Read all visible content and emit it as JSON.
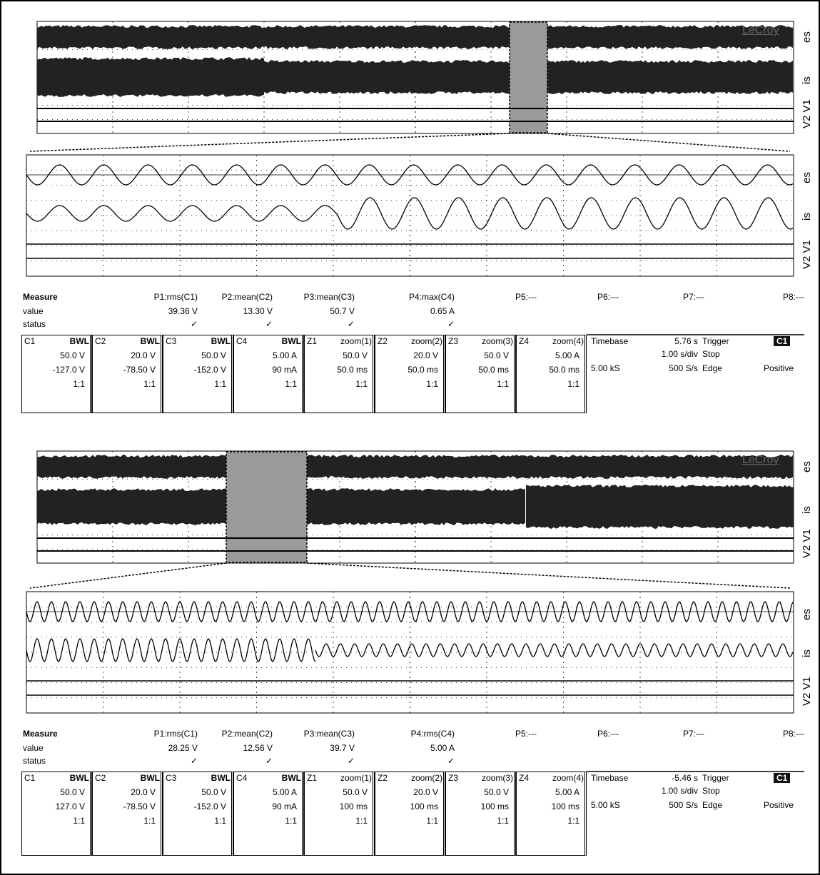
{
  "panels": [
    {
      "logo": "LeCroy",
      "trace_labels": [
        "es",
        "is",
        "V2 V1"
      ],
      "zoom_trace_labels": [
        "es",
        "is",
        "V2 V1"
      ],
      "measure": {
        "headers": [
          "Measure",
          "P1:rms(C1)",
          "P2:mean(C2)",
          "P3:mean(C3)",
          "P4:max(C4)",
          "P5:---",
          "P6:---",
          "P7:---",
          "P8:---"
        ],
        "values": [
          "value",
          "39.36 V",
          "13.30 V",
          "50.7 V",
          "0.65 A"
        ],
        "status": [
          "status",
          "✓",
          "✓",
          "✓",
          "✓"
        ]
      },
      "channels": [
        {
          "name": "C1",
          "tag": "BWL",
          "lines": [
            "50.0 V",
            "-127.0 V",
            "1:1"
          ]
        },
        {
          "name": "C2",
          "tag": "BWL",
          "lines": [
            "20.0 V",
            "-78.50 V",
            "1:1"
          ]
        },
        {
          "name": "C3",
          "tag": "BWL",
          "lines": [
            "50.0 V",
            "-152.0 V",
            "1:1"
          ]
        },
        {
          "name": "C4",
          "tag": "BWL",
          "lines": [
            "5.00 A",
            "90 mA",
            "1:1"
          ]
        },
        {
          "name": "Z1",
          "tag": "zoom(1)",
          "lines": [
            "50.0 V",
            "50.0 ms",
            "1:1"
          ]
        },
        {
          "name": "Z2",
          "tag": "zoom(2)",
          "lines": [
            "20.0 V",
            "50.0 ms",
            "1:1"
          ]
        },
        {
          "name": "Z3",
          "tag": "zoom(3)",
          "lines": [
            "50.0 V",
            "50.0 ms",
            "1:1"
          ]
        },
        {
          "name": "Z4",
          "tag": "zoom(4)",
          "lines": [
            "5.00 A",
            "50.0 ms",
            "1:1"
          ]
        }
      ],
      "timebase": {
        "label": "Timebase",
        "delay": "5.76 s",
        "div": "1.00 s/div",
        "samples": "5.00 kS",
        "rate": "500 S/s"
      },
      "trigger": {
        "label": "Trigger",
        "tag": "C1",
        "mode": "Stop",
        "type": "Edge",
        "slope": "Positive"
      }
    },
    {
      "logo": "LeCroy",
      "trace_labels": [
        "es",
        "is",
        "V2 V1"
      ],
      "zoom_trace_labels": [
        "es",
        "is",
        "V2 V1"
      ],
      "measure": {
        "headers": [
          "Measure",
          "P1:rms(C1)",
          "P2:mean(C2)",
          "P3:mean(C3)",
          "P4:rms(C4)",
          "P5:---",
          "P6:---",
          "P7:---",
          "P8:---"
        ],
        "values": [
          "value",
          "28.25 V",
          "12.56 V",
          "39.7 V",
          "5.00 A"
        ],
        "status": [
          "status",
          "✓",
          "✓",
          "✓",
          "✓"
        ]
      },
      "channels": [
        {
          "name": "C1",
          "tag": "BWL",
          "lines": [
            "50.0 V",
            "127.0 V",
            "1:1"
          ]
        },
        {
          "name": "C2",
          "tag": "BWL",
          "lines": [
            "20.0 V",
            "-78.50 V",
            "1:1"
          ]
        },
        {
          "name": "C3",
          "tag": "BWL",
          "lines": [
            "50.0 V",
            "-152.0 V",
            "1:1"
          ]
        },
        {
          "name": "C4",
          "tag": "BWL",
          "lines": [
            "5.00 A",
            "90 mA",
            "1:1"
          ]
        },
        {
          "name": "Z1",
          "tag": "zoom(1)",
          "lines": [
            "50.0 V",
            "100 ms",
            "1:1"
          ]
        },
        {
          "name": "Z2",
          "tag": "zoom(2)",
          "lines": [
            "20.0 V",
            "100 ms",
            "1:1"
          ]
        },
        {
          "name": "Z3",
          "tag": "zoom(3)",
          "lines": [
            "50.0 V",
            "100 ms",
            "1:1"
          ]
        },
        {
          "name": "Z4",
          "tag": "zoom(4)",
          "lines": [
            "5.00 A",
            "100 ms",
            "1:1"
          ]
        }
      ],
      "timebase": {
        "label": "Timebase",
        "delay": "-5.46 s",
        "div": "1.00 s/div",
        "samples": "5.00 kS",
        "rate": "500 S/s"
      },
      "trigger": {
        "label": "Trigger",
        "tag": "C1",
        "mode": "Stop",
        "type": "Edge",
        "slope": "Positive"
      }
    }
  ]
}
